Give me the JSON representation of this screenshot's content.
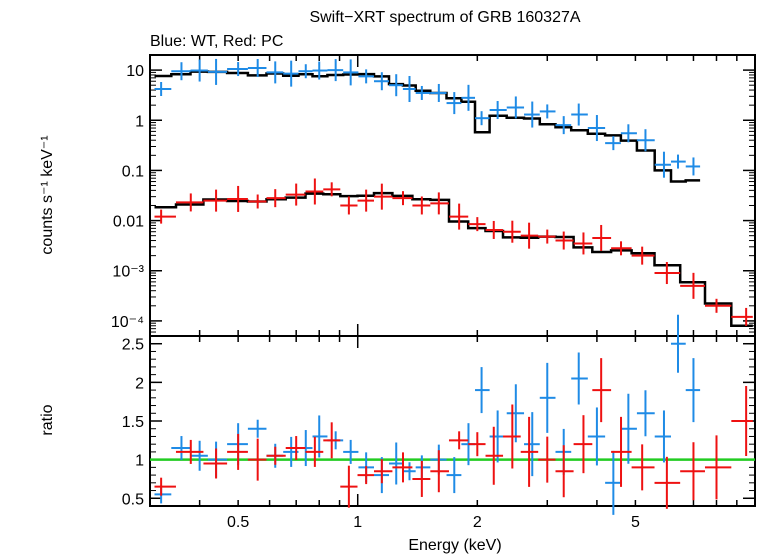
{
  "title": "Swift−XRT spectrum of GRB 160327A",
  "subtitle": "Blue: WT, Red: PC",
  "colors": {
    "wt": "#1f8be6",
    "pc": "#ee1111",
    "model": "#000000",
    "unity": "#22cc22"
  },
  "chart_data": [
    {
      "type": "scatter",
      "panel": "spectrum",
      "xlabel": "Energy (keV)",
      "ylabel": "counts s⁻¹ keV⁻¹",
      "x_scale": "log",
      "y_scale": "log",
      "xlim": [
        0.3,
        10
      ],
      "ylim": [
        5e-05,
        20
      ],
      "y_ticks": [
        "10",
        "1",
        "0.1",
        "0.01",
        "10⁻³",
        "10⁻⁴"
      ],
      "series": [
        {
          "name": "WT",
          "color": "#1f8be6",
          "points": [
            {
              "x": 0.32,
              "y": 4.2
            },
            {
              "x": 0.36,
              "y": 9.5
            },
            {
              "x": 0.4,
              "y": 9.8
            },
            {
              "x": 0.44,
              "y": 9.2
            },
            {
              "x": 0.5,
              "y": 10.5
            },
            {
              "x": 0.56,
              "y": 11
            },
            {
              "x": 0.62,
              "y": 9
            },
            {
              "x": 0.68,
              "y": 8.5
            },
            {
              "x": 0.74,
              "y": 9.5
            },
            {
              "x": 0.8,
              "y": 9.8
            },
            {
              "x": 0.88,
              "y": 10
            },
            {
              "x": 0.96,
              "y": 9
            },
            {
              "x": 1.05,
              "y": 7.5
            },
            {
              "x": 1.15,
              "y": 6
            },
            {
              "x": 1.25,
              "y": 5
            },
            {
              "x": 1.35,
              "y": 4.2
            },
            {
              "x": 1.45,
              "y": 3.5
            },
            {
              "x": 1.6,
              "y": 3.5
            },
            {
              "x": 1.75,
              "y": 2.2
            },
            {
              "x": 1.9,
              "y": 2.8
            },
            {
              "x": 2.05,
              "y": 1.1
            },
            {
              "x": 2.25,
              "y": 1.6
            },
            {
              "x": 2.5,
              "y": 1.8
            },
            {
              "x": 2.75,
              "y": 1.3
            },
            {
              "x": 3.0,
              "y": 1.5
            },
            {
              "x": 3.3,
              "y": 0.8
            },
            {
              "x": 3.6,
              "y": 1.3
            },
            {
              "x": 4.0,
              "y": 0.7
            },
            {
              "x": 4.4,
              "y": 0.35
            },
            {
              "x": 4.8,
              "y": 0.55
            },
            {
              "x": 5.3,
              "y": 0.4
            },
            {
              "x": 5.9,
              "y": 0.13
            },
            {
              "x": 6.4,
              "y": 0.15
            },
            {
              "x": 7.0,
              "y": 0.12
            }
          ]
        },
        {
          "name": "PC",
          "color": "#ee1111",
          "points": [
            {
              "x": 0.32,
              "y": 0.012
            },
            {
              "x": 0.38,
              "y": 0.023
            },
            {
              "x": 0.44,
              "y": 0.025
            },
            {
              "x": 0.5,
              "y": 0.027
            },
            {
              "x": 0.56,
              "y": 0.024
            },
            {
              "x": 0.62,
              "y": 0.028
            },
            {
              "x": 0.7,
              "y": 0.033
            },
            {
              "x": 0.78,
              "y": 0.038
            },
            {
              "x": 0.86,
              "y": 0.042
            },
            {
              "x": 0.95,
              "y": 0.02
            },
            {
              "x": 1.05,
              "y": 0.025
            },
            {
              "x": 1.15,
              "y": 0.03
            },
            {
              "x": 1.3,
              "y": 0.028
            },
            {
              "x": 1.45,
              "y": 0.02
            },
            {
              "x": 1.6,
              "y": 0.022
            },
            {
              "x": 1.8,
              "y": 0.012
            },
            {
              "x": 2.0,
              "y": 0.0085
            },
            {
              "x": 2.2,
              "y": 0.0065
            },
            {
              "x": 2.45,
              "y": 0.006
            },
            {
              "x": 2.7,
              "y": 0.005
            },
            {
              "x": 3.0,
              "y": 0.0048
            },
            {
              "x": 3.3,
              "y": 0.004
            },
            {
              "x": 3.7,
              "y": 0.0035
            },
            {
              "x": 4.1,
              "y": 0.0045
            },
            {
              "x": 4.6,
              "y": 0.0028
            },
            {
              "x": 5.2,
              "y": 0.002
            },
            {
              "x": 6.0,
              "y": 0.0009
            },
            {
              "x": 7.0,
              "y": 0.0005
            },
            {
              "x": 8.0,
              "y": 0.0002
            },
            {
              "x": 9.5,
              "y": 0.00012
            }
          ]
        }
      ]
    },
    {
      "type": "scatter",
      "panel": "ratio",
      "xlabel": "Energy (keV)",
      "ylabel": "ratio",
      "x_scale": "log",
      "xlim": [
        0.3,
        10
      ],
      "ylim": [
        0.4,
        2.6
      ],
      "x_ticks": [
        "0.5",
        "1",
        "2",
        "5"
      ],
      "y_ticks": [
        "0.5",
        "1",
        "1.5",
        "2",
        "2.5"
      ],
      "reference_line": 1,
      "series": [
        {
          "name": "WT",
          "color": "#1f8be6",
          "points": [
            {
              "x": 0.32,
              "y": 0.55
            },
            {
              "x": 0.36,
              "y": 1.15
            },
            {
              "x": 0.4,
              "y": 1.05
            },
            {
              "x": 0.44,
              "y": 1.0
            },
            {
              "x": 0.5,
              "y": 1.2
            },
            {
              "x": 0.56,
              "y": 1.4
            },
            {
              "x": 0.62,
              "y": 1.05
            },
            {
              "x": 0.68,
              "y": 1.1
            },
            {
              "x": 0.74,
              "y": 1.15
            },
            {
              "x": 0.8,
              "y": 1.3
            },
            {
              "x": 0.88,
              "y": 1.25
            },
            {
              "x": 0.96,
              "y": 1.1
            },
            {
              "x": 1.05,
              "y": 0.9
            },
            {
              "x": 1.15,
              "y": 0.8
            },
            {
              "x": 1.25,
              "y": 0.95
            },
            {
              "x": 1.35,
              "y": 0.85
            },
            {
              "x": 1.45,
              "y": 0.9
            },
            {
              "x": 1.6,
              "y": 1.0
            },
            {
              "x": 1.75,
              "y": 0.8
            },
            {
              "x": 1.9,
              "y": 1.2
            },
            {
              "x": 2.05,
              "y": 1.9
            },
            {
              "x": 2.25,
              "y": 1.3
            },
            {
              "x": 2.5,
              "y": 1.6
            },
            {
              "x": 2.75,
              "y": 1.2
            },
            {
              "x": 3.0,
              "y": 1.8
            },
            {
              "x": 3.3,
              "y": 1.1
            },
            {
              "x": 3.6,
              "y": 2.05
            },
            {
              "x": 4.0,
              "y": 1.3
            },
            {
              "x": 4.4,
              "y": 0.7
            },
            {
              "x": 4.8,
              "y": 1.4
            },
            {
              "x": 5.3,
              "y": 1.6
            },
            {
              "x": 5.9,
              "y": 1.3
            },
            {
              "x": 6.4,
              "y": 2.5
            },
            {
              "x": 7.0,
              "y": 1.9
            }
          ]
        },
        {
          "name": "PC",
          "color": "#ee1111",
          "points": [
            {
              "x": 0.32,
              "y": 0.65
            },
            {
              "x": 0.38,
              "y": 1.1
            },
            {
              "x": 0.44,
              "y": 0.95
            },
            {
              "x": 0.5,
              "y": 1.1
            },
            {
              "x": 0.56,
              "y": 1.0
            },
            {
              "x": 0.62,
              "y": 1.05
            },
            {
              "x": 0.7,
              "y": 1.15
            },
            {
              "x": 0.78,
              "y": 1.1
            },
            {
              "x": 0.86,
              "y": 1.25
            },
            {
              "x": 0.95,
              "y": 0.65
            },
            {
              "x": 1.05,
              "y": 0.8
            },
            {
              "x": 1.15,
              "y": 0.85
            },
            {
              "x": 1.3,
              "y": 0.9
            },
            {
              "x": 1.45,
              "y": 0.75
            },
            {
              "x": 1.6,
              "y": 0.85
            },
            {
              "x": 1.8,
              "y": 1.25
            },
            {
              "x": 2.0,
              "y": 1.2
            },
            {
              "x": 2.2,
              "y": 1.05
            },
            {
              "x": 2.45,
              "y": 1.3
            },
            {
              "x": 2.7,
              "y": 1.1
            },
            {
              "x": 3.0,
              "y": 1.0
            },
            {
              "x": 3.3,
              "y": 0.85
            },
            {
              "x": 3.7,
              "y": 1.2
            },
            {
              "x": 4.1,
              "y": 1.9
            },
            {
              "x": 4.6,
              "y": 1.1
            },
            {
              "x": 5.2,
              "y": 0.9
            },
            {
              "x": 6.0,
              "y": 0.7
            },
            {
              "x": 7.0,
              "y": 0.85
            },
            {
              "x": 8.0,
              "y": 0.9
            },
            {
              "x": 9.5,
              "y": 1.5
            }
          ]
        }
      ]
    }
  ]
}
